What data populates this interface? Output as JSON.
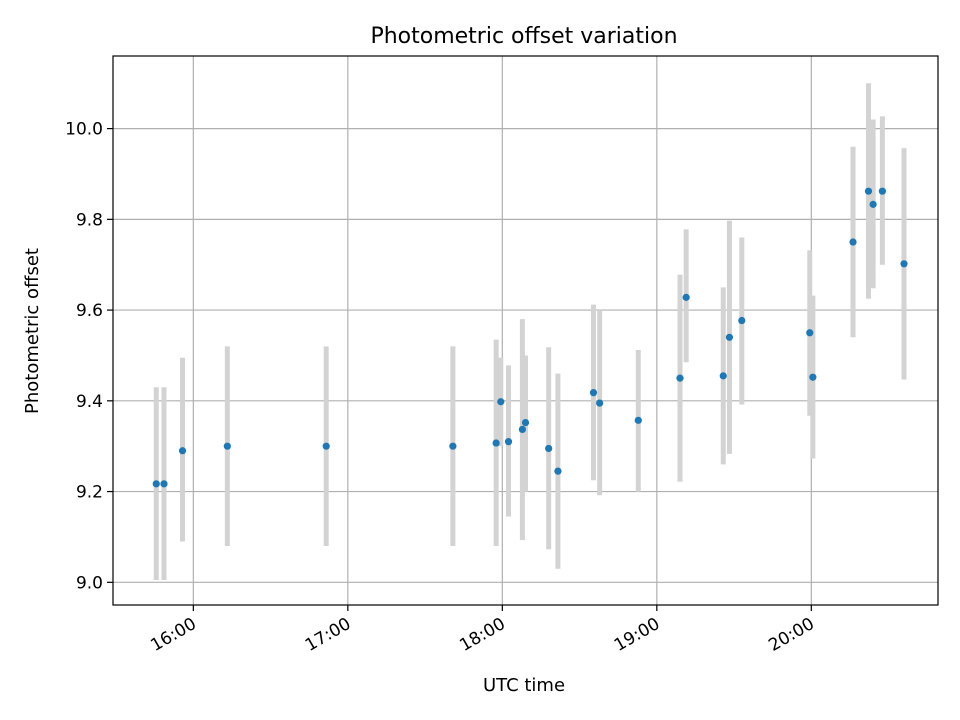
{
  "chart_data": {
    "type": "scatter",
    "title": "Photometric offset variation",
    "xlabel": "UTC time",
    "ylabel": "Photometric offset",
    "grid": true,
    "xlim_hours": [
      15.48,
      20.82
    ],
    "ylim": [
      8.95,
      10.16
    ],
    "x_ticks": [
      {
        "value": 16,
        "label": "16:00"
      },
      {
        "value": 17,
        "label": "17:00"
      },
      {
        "value": 18,
        "label": "18:00"
      },
      {
        "value": 19,
        "label": "19:00"
      },
      {
        "value": 20,
        "label": "20:00"
      }
    ],
    "y_ticks": [
      {
        "value": 9.0,
        "label": "9.0"
      },
      {
        "value": 9.2,
        "label": "9.2"
      },
      {
        "value": 9.4,
        "label": "9.4"
      },
      {
        "value": 9.6,
        "label": "9.6"
      },
      {
        "value": 9.8,
        "label": "9.8"
      },
      {
        "value": 10.0,
        "label": "10.0"
      }
    ],
    "point_color": "#1f77b4",
    "errorbar_color": "#d3d3d3",
    "points": [
      {
        "x": 15.76,
        "y": 9.217,
        "yerr_low": 9.005,
        "yerr_high": 9.43
      },
      {
        "x": 15.81,
        "y": 9.217,
        "yerr_low": 9.005,
        "yerr_high": 9.43
      },
      {
        "x": 15.93,
        "y": 9.29,
        "yerr_low": 9.09,
        "yerr_high": 9.495
      },
      {
        "x": 16.22,
        "y": 9.3,
        "yerr_low": 9.08,
        "yerr_high": 9.52
      },
      {
        "x": 16.86,
        "y": 9.3,
        "yerr_low": 9.08,
        "yerr_high": 9.52
      },
      {
        "x": 17.68,
        "y": 9.3,
        "yerr_low": 9.08,
        "yerr_high": 9.52
      },
      {
        "x": 17.96,
        "y": 9.307,
        "yerr_low": 9.08,
        "yerr_high": 9.535
      },
      {
        "x": 17.99,
        "y": 9.398,
        "yerr_low": 9.3,
        "yerr_high": 9.495
      },
      {
        "x": 18.04,
        "y": 9.31,
        "yerr_low": 9.145,
        "yerr_high": 9.478
      },
      {
        "x": 18.13,
        "y": 9.337,
        "yerr_low": 9.093,
        "yerr_high": 9.58
      },
      {
        "x": 18.15,
        "y": 9.352,
        "yerr_low": 9.2,
        "yerr_high": 9.5
      },
      {
        "x": 18.3,
        "y": 9.295,
        "yerr_low": 9.073,
        "yerr_high": 9.518
      },
      {
        "x": 18.36,
        "y": 9.245,
        "yerr_low": 9.03,
        "yerr_high": 9.46
      },
      {
        "x": 18.59,
        "y": 9.418,
        "yerr_low": 9.225,
        "yerr_high": 9.612
      },
      {
        "x": 18.63,
        "y": 9.395,
        "yerr_low": 9.192,
        "yerr_high": 9.598
      },
      {
        "x": 18.88,
        "y": 9.357,
        "yerr_low": 9.2,
        "yerr_high": 9.512
      },
      {
        "x": 19.15,
        "y": 9.45,
        "yerr_low": 9.222,
        "yerr_high": 9.678
      },
      {
        "x": 19.19,
        "y": 9.628,
        "yerr_low": 9.485,
        "yerr_high": 9.778
      },
      {
        "x": 19.43,
        "y": 9.455,
        "yerr_low": 9.26,
        "yerr_high": 9.65
      },
      {
        "x": 19.47,
        "y": 9.54,
        "yerr_low": 9.283,
        "yerr_high": 9.797
      },
      {
        "x": 19.55,
        "y": 9.577,
        "yerr_low": 9.392,
        "yerr_high": 9.76
      },
      {
        "x": 19.99,
        "y": 9.55,
        "yerr_low": 9.367,
        "yerr_high": 9.732
      },
      {
        "x": 20.01,
        "y": 9.452,
        "yerr_low": 9.273,
        "yerr_high": 9.632
      },
      {
        "x": 20.27,
        "y": 9.75,
        "yerr_low": 9.54,
        "yerr_high": 9.96
      },
      {
        "x": 20.37,
        "y": 9.862,
        "yerr_low": 9.625,
        "yerr_high": 10.1
      },
      {
        "x": 20.4,
        "y": 9.833,
        "yerr_low": 9.648,
        "yerr_high": 10.02
      },
      {
        "x": 20.46,
        "y": 9.862,
        "yerr_low": 9.7,
        "yerr_high": 10.027
      },
      {
        "x": 20.6,
        "y": 9.702,
        "yerr_low": 9.447,
        "yerr_high": 9.957
      }
    ]
  }
}
